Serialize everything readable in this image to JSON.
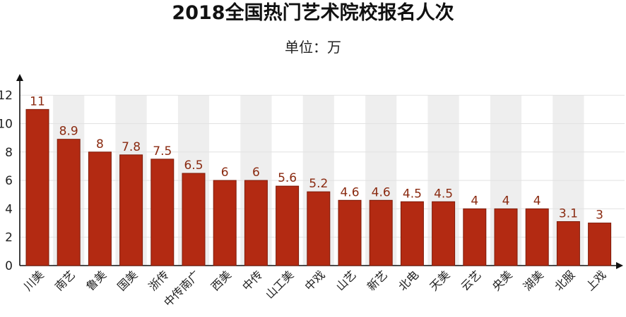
{
  "chart_data": {
    "type": "bar",
    "title": "2018全国热门艺术院校报名人次",
    "subtitle": "单位：万",
    "categories": [
      "川美",
      "南艺",
      "鲁美",
      "国美",
      "浙传",
      "中传南广",
      "西美",
      "中传",
      "山工美",
      "中戏",
      "山艺",
      "新艺",
      "北电",
      "天美",
      "云艺",
      "央美",
      "湖美",
      "北服",
      "上戏"
    ],
    "values": [
      11,
      8.9,
      8,
      7.8,
      7.5,
      6.5,
      6,
      6,
      5.6,
      5.2,
      4.6,
      4.6,
      4.5,
      4.5,
      4,
      4,
      4,
      3.1,
      3
    ],
    "data_labels": [
      "11",
      "8.9",
      "8",
      "7.8",
      "7.5",
      "6.5",
      "6",
      "6",
      "5.6",
      "5.2",
      "4.6",
      "4.6",
      "4.5",
      "4.5",
      "4",
      "4",
      "4",
      "3.1",
      "3"
    ],
    "y_ticks": [
      0,
      2,
      4,
      6,
      8,
      10,
      12
    ],
    "ylim": [
      0,
      13.5
    ],
    "grid": true,
    "colors": {
      "bar": "#b32a12",
      "bar_edge": "#7e1c0a",
      "label": "#8a2a10",
      "shade": "#eeeeee",
      "grid": "#e2e2e2"
    }
  }
}
